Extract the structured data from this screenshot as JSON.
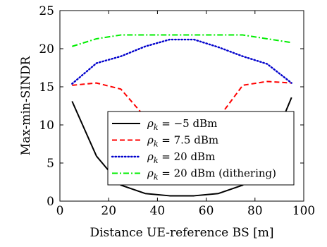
{
  "chart_data": {
    "type": "line",
    "xlabel": "Distance UE-reference BS [m]",
    "ylabel": "Max-min-SINDR",
    "xlim": [
      0,
      100
    ],
    "ylim": [
      0,
      25
    ],
    "xticks": [
      0,
      20,
      40,
      60,
      80,
      100
    ],
    "yticks": [
      0,
      5,
      10,
      15,
      20,
      25
    ],
    "grid": false,
    "legend_position": "bottom-right",
    "series": [
      {
        "name": "ρk = −5 dBm",
        "legend_prefix": "ρ",
        "legend_sub": "k",
        "legend_rest": " = −5 dBm",
        "color": "#000000",
        "dash": "solid",
        "x": [
          5,
          15,
          25,
          35,
          45,
          55,
          65,
          75,
          85,
          95
        ],
        "y": [
          13.1,
          5.9,
          2.1,
          1.0,
          0.7,
          0.7,
          1.0,
          2.1,
          5.9,
          13.6
        ]
      },
      {
        "name": "ρk = 7.5 dBm",
        "legend_prefix": "ρ",
        "legend_sub": "k",
        "legend_rest": " = 7.5 dBm",
        "color": "#ff0000",
        "dash": "dashed",
        "x": [
          5,
          15,
          25,
          35,
          45,
          55,
          65,
          75,
          85,
          95
        ],
        "y": [
          15.2,
          15.5,
          14.7,
          11.0,
          9.1,
          9.1,
          10.9,
          15.2,
          15.7,
          15.5
        ]
      },
      {
        "name": "ρk = 20 dBm",
        "legend_prefix": "ρ",
        "legend_sub": "k",
        "legend_rest": " = 20 dBm",
        "color": "#0000cc",
        "dash": "dotted",
        "x": [
          5,
          15,
          25,
          35,
          45,
          55,
          65,
          75,
          85,
          95
        ],
        "y": [
          15.4,
          18.1,
          19.0,
          20.3,
          21.2,
          21.2,
          20.2,
          19.0,
          18.0,
          15.5
        ]
      },
      {
        "name": "ρk = 20 dBm (dithering)",
        "legend_prefix": "ρ",
        "legend_sub": "k",
        "legend_rest": " = 20 dBm (dithering)",
        "color": "#00ee00",
        "dash": "dashdot",
        "x": [
          5,
          15,
          25,
          35,
          45,
          55,
          65,
          75,
          85,
          95
        ],
        "y": [
          20.3,
          21.3,
          21.8,
          21.8,
          21.8,
          21.8,
          21.8,
          21.8,
          21.3,
          20.8
        ]
      }
    ]
  }
}
